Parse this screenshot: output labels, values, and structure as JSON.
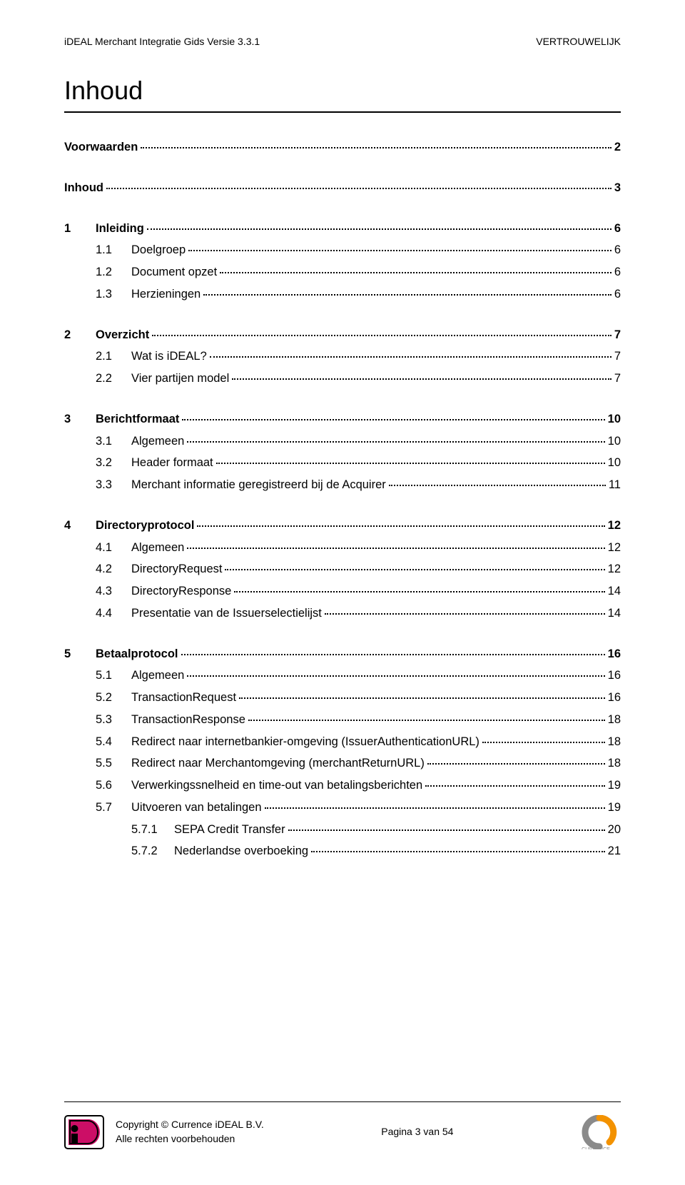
{
  "header": {
    "left": "iDEAL Merchant Integratie Gids Versie 3.3.1",
    "right": "VERTROUWELIJK"
  },
  "title": "Inhoud",
  "toc": [
    {
      "level": 0,
      "num": "",
      "label": "Voorwaarden",
      "page": "2",
      "bold": true,
      "gapAfter": true
    },
    {
      "level": 0,
      "num": "",
      "label": "Inhoud",
      "page": "3",
      "bold": true,
      "gapAfter": true
    },
    {
      "level": 1,
      "num": "1",
      "label": "Inleiding",
      "page": "6",
      "bold": true
    },
    {
      "level": 2,
      "num": "1.1",
      "label": "Doelgroep",
      "page": "6"
    },
    {
      "level": 2,
      "num": "1.2",
      "label": "Document opzet",
      "page": "6"
    },
    {
      "level": 2,
      "num": "1.3",
      "label": "Herzieningen",
      "page": "6",
      "gapAfter": true
    },
    {
      "level": 1,
      "num": "2",
      "label": "Overzicht",
      "page": "7",
      "bold": true
    },
    {
      "level": 2,
      "num": "2.1",
      "label": "Wat is iDEAL?",
      "page": "7"
    },
    {
      "level": 2,
      "num": "2.2",
      "label": "Vier partijen model",
      "page": "7",
      "gapAfter": true
    },
    {
      "level": 1,
      "num": "3",
      "label": "Berichtformaat",
      "page": "10",
      "bold": true
    },
    {
      "level": 2,
      "num": "3.1",
      "label": "Algemeen",
      "page": "10"
    },
    {
      "level": 2,
      "num": "3.2",
      "label": "Header formaat",
      "page": "10"
    },
    {
      "level": 2,
      "num": "3.3",
      "label": "Merchant informatie geregistreerd bij de Acquirer",
      "page": "11",
      "gapAfter": true
    },
    {
      "level": 1,
      "num": "4",
      "label": "Directoryprotocol",
      "page": "12",
      "bold": true
    },
    {
      "level": 2,
      "num": "4.1",
      "label": "Algemeen",
      "page": "12"
    },
    {
      "level": 2,
      "num": "4.2",
      "label": "DirectoryRequest",
      "page": "12"
    },
    {
      "level": 2,
      "num": "4.3",
      "label": "DirectoryResponse",
      "page": "14"
    },
    {
      "level": 2,
      "num": "4.4",
      "label": "Presentatie van de Issuerselectielijst",
      "page": "14",
      "gapAfter": true
    },
    {
      "level": 1,
      "num": "5",
      "label": "Betaalprotocol",
      "page": "16",
      "bold": true
    },
    {
      "level": 2,
      "num": "5.1",
      "label": "Algemeen",
      "page": "16"
    },
    {
      "level": 2,
      "num": "5.2",
      "label": "TransactionRequest",
      "page": "16"
    },
    {
      "level": 2,
      "num": "5.3",
      "label": "TransactionResponse",
      "page": "18"
    },
    {
      "level": 2,
      "num": "5.4",
      "label": "Redirect naar internetbankier-omgeving (IssuerAuthenticationURL)",
      "page": "18"
    },
    {
      "level": 2,
      "num": "5.5",
      "label": "Redirect naar Merchantomgeving (merchantReturnURL)",
      "page": "18"
    },
    {
      "level": 2,
      "num": "5.6",
      "label": "Verwerkingssnelheid en time-out van betalingsberichten",
      "page": "19"
    },
    {
      "level": 2,
      "num": "5.7",
      "label": "Uitvoeren van betalingen",
      "page": "19"
    },
    {
      "level": 3,
      "num": "5.7.1",
      "label": "SEPA Credit Transfer",
      "page": "20"
    },
    {
      "level": 3,
      "num": "5.7.2",
      "label": "Nederlandse overboeking",
      "page": "21"
    }
  ],
  "footer": {
    "copyright": "Copyright © Currence iDEAL B.V.",
    "rights": "Alle rechten voorbehouden",
    "pageinfo": "Pagina 3 van 54"
  },
  "colors": {
    "ideal_pink": "#cc0e66",
    "ideal_black": "#000000",
    "currence_gray": "#8a8a8a",
    "currence_orange": "#f39200"
  }
}
